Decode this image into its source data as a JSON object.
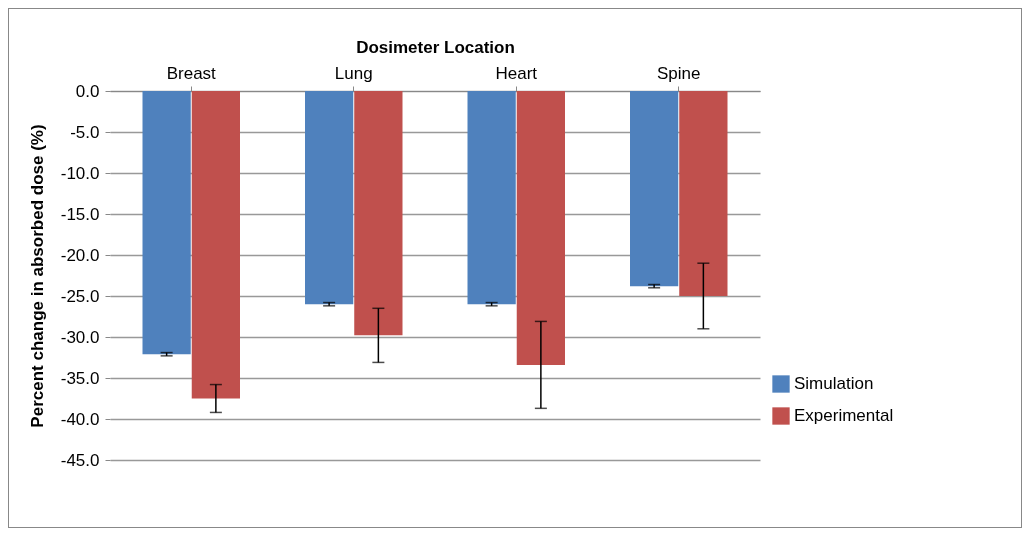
{
  "chart_data": {
    "type": "bar",
    "xlabel": "Dosimeter Location",
    "ylabel": "Percent change in absorbed dose (%)",
    "categories": [
      "Breast",
      "Lung",
      "Heart",
      "Spine"
    ],
    "series": [
      {
        "name": "Simulation",
        "color": "#4f81bd",
        "values": [
          -32.1,
          -26.0,
          -26.0,
          -23.8
        ],
        "errors": [
          0.2,
          0.2,
          0.2,
          0.2
        ]
      },
      {
        "name": "Experimental",
        "color": "#c0504d",
        "values": [
          -37.5,
          -29.8,
          -33.4,
          -25.0
        ],
        "errors": [
          1.7,
          3.3,
          5.3,
          4.0
        ]
      }
    ],
    "ylim": [
      -45,
      0
    ],
    "yticks": [
      {
        "value": 0,
        "label": "0.0"
      },
      {
        "value": -5,
        "label": "-5.0"
      },
      {
        "value": -10,
        "label": "-10.0"
      },
      {
        "value": -15,
        "label": "-15.0"
      },
      {
        "value": -20,
        "label": "-20.0"
      },
      {
        "value": -25,
        "label": "-25.0"
      },
      {
        "value": -30,
        "label": "-30.0"
      },
      {
        "value": -35,
        "label": "-35.0"
      },
      {
        "value": -40,
        "label": "-40.0"
      },
      {
        "value": -45,
        "label": "-45.0"
      }
    ],
    "grid": "y",
    "legend": "bottom right"
  }
}
